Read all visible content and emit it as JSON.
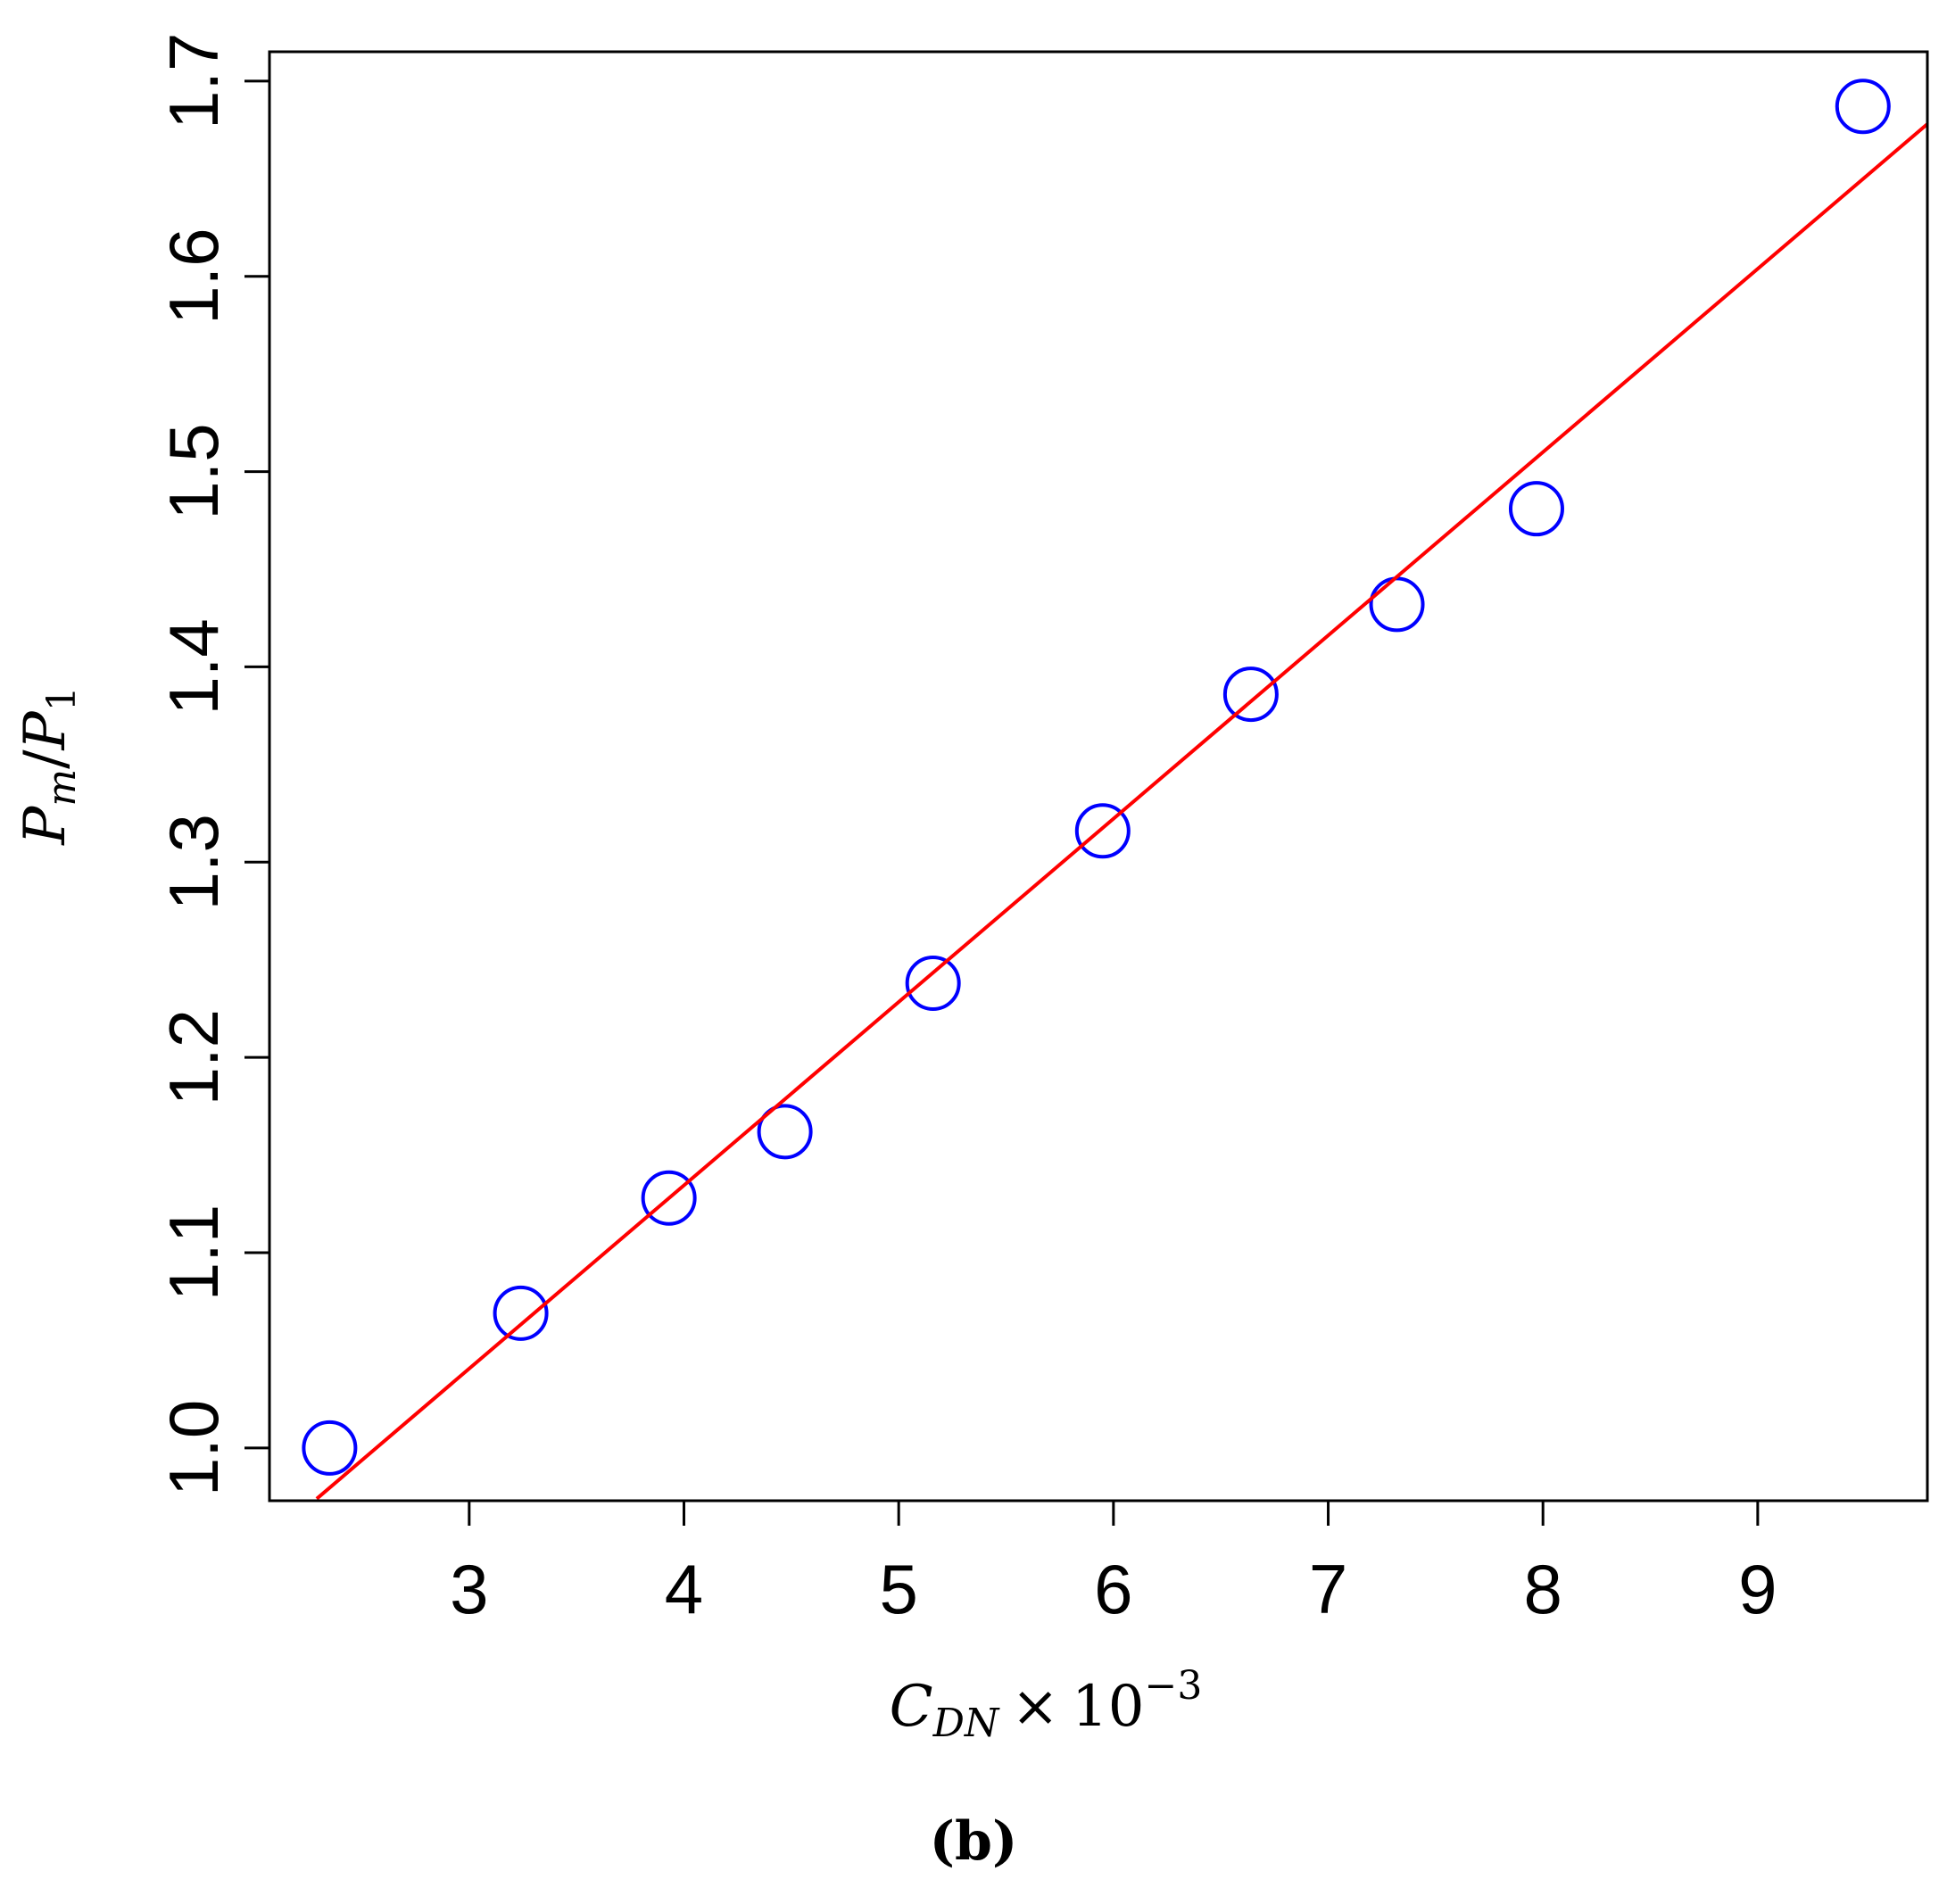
{
  "chart_data": {
    "type": "scatter",
    "xlabel": {
      "main": "C",
      "sub": "DN",
      "mult": "×",
      "base": "10",
      "exp": "−3"
    },
    "ylabel": {
      "num": "P",
      "num_sub": "m",
      "slash": "/",
      "den": "P",
      "den_sub": "1"
    },
    "caption": "(b)",
    "xlim": [
      2.07,
      9.79
    ],
    "ylim": [
      0.973,
      1.715
    ],
    "xticks": [
      3,
      4,
      5,
      6,
      7,
      8,
      9
    ],
    "xtick_labels": [
      "3",
      "4",
      "5",
      "6",
      "7",
      "8",
      "9"
    ],
    "yticks": [
      1.0,
      1.1,
      1.2,
      1.3,
      1.4,
      1.5,
      1.6,
      1.7
    ],
    "ytick_labels": [
      "1.0",
      "1.1",
      "1.2",
      "1.3",
      "1.4",
      "1.5",
      "1.6",
      "1.7"
    ],
    "grid": false,
    "series": [
      {
        "kind": "points",
        "marker": "open-circle",
        "color": "#0000ff",
        "x": [
          2.35,
          3.24,
          3.93,
          4.47,
          5.16,
          5.95,
          6.64,
          7.32,
          7.97,
          9.49
        ],
        "y": [
          1.0,
          1.069,
          1.128,
          1.162,
          1.238,
          1.316,
          1.386,
          1.432,
          1.481,
          1.687
        ]
      },
      {
        "kind": "fit-line",
        "color": "#ff0000",
        "x": [
          2.29,
          9.79
        ],
        "y": [
          0.974,
          1.678
        ]
      }
    ]
  }
}
